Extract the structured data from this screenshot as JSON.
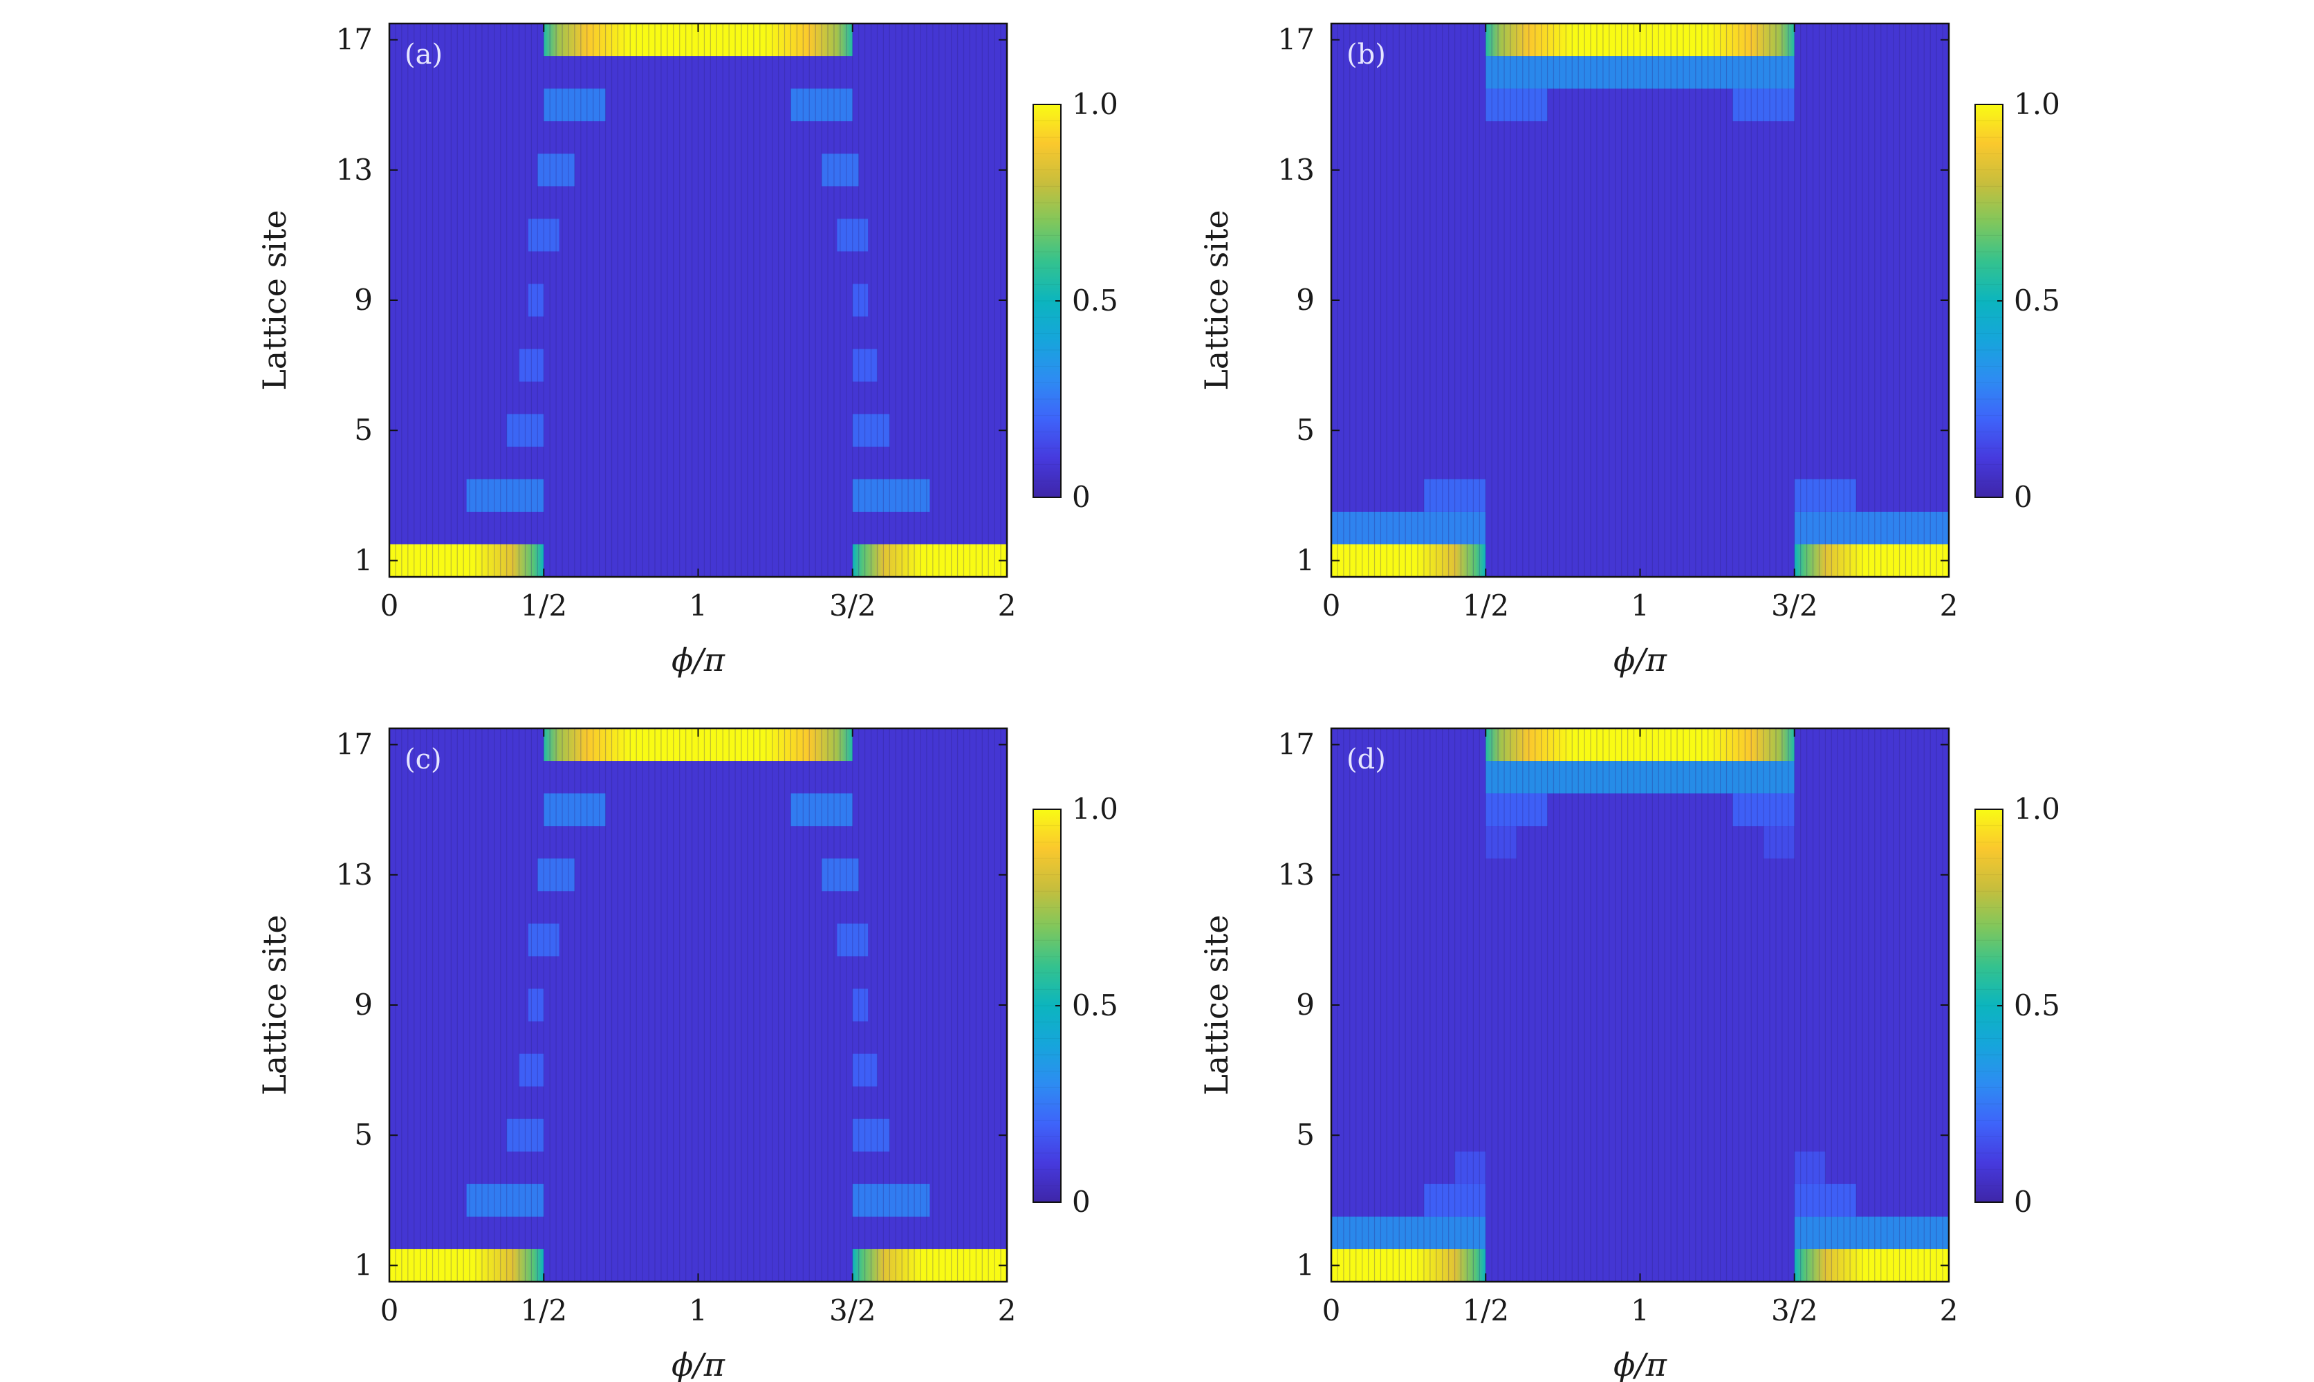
{
  "chart_data": [
    {
      "type": "heatmap",
      "panel_label": "(a)",
      "xlabel": "ϕ/π",
      "ylabel": "Lattice site",
      "xlim": [
        0,
        2
      ],
      "ylim": [
        0.5,
        17.5
      ],
      "x_ticks": [
        "0",
        "1/2",
        "1",
        "3/2",
        "2"
      ],
      "x_tick_values": [
        0,
        0.5,
        1,
        1.5,
        2
      ],
      "y_ticks": [
        "1",
        "5",
        "9",
        "13",
        "17"
      ],
      "y_tick_values": [
        1,
        5,
        9,
        13,
        17
      ],
      "colorbar": {
        "ticks": [
          "0",
          "0.5",
          "1.0"
        ],
        "tick_values": [
          0,
          0.5,
          1.0
        ],
        "range": [
          0,
          1.0
        ]
      },
      "colormap": "parula",
      "edge_states": [
        {
          "site": 1,
          "x_start": 0,
          "x_end": 0.5,
          "value": 1.0,
          "fade": "right"
        },
        {
          "site": 1,
          "x_start": 1.5,
          "x_end": 2,
          "value": 1.0,
          "fade": "left"
        },
        {
          "site": 17,
          "x_start": 0.5,
          "x_end": 1.5,
          "value": 1.0,
          "fade": "both"
        }
      ],
      "bulk_spots": [
        {
          "x_start": 0.25,
          "x_end": 0.5,
          "site": 3,
          "value": 0.28
        },
        {
          "x_start": 0.38,
          "x_end": 0.5,
          "site": 5,
          "value": 0.22
        },
        {
          "x_start": 0.42,
          "x_end": 0.5,
          "site": 7,
          "value": 0.2
        },
        {
          "x_start": 0.45,
          "x_end": 0.5,
          "site": 9,
          "value": 0.2
        },
        {
          "x_start": 0.45,
          "x_end": 0.55,
          "site": 11,
          "value": 0.22
        },
        {
          "x_start": 0.48,
          "x_end": 0.6,
          "site": 13,
          "value": 0.25
        },
        {
          "x_start": 0.5,
          "x_end": 0.7,
          "site": 15,
          "value": 0.28
        },
        {
          "x_start": 1.5,
          "x_end": 1.75,
          "site": 3,
          "value": 0.28
        },
        {
          "x_start": 1.5,
          "x_end": 1.62,
          "site": 5,
          "value": 0.22
        },
        {
          "x_start": 1.5,
          "x_end": 1.58,
          "site": 7,
          "value": 0.2
        },
        {
          "x_start": 1.5,
          "x_end": 1.55,
          "site": 9,
          "value": 0.2
        },
        {
          "x_start": 1.45,
          "x_end": 1.55,
          "site": 11,
          "value": 0.22
        },
        {
          "x_start": 1.4,
          "x_end": 1.52,
          "site": 13,
          "value": 0.25
        },
        {
          "x_start": 1.3,
          "x_end": 1.5,
          "site": 15,
          "value": 0.28
        }
      ],
      "background_value": 0.08
    },
    {
      "type": "heatmap",
      "panel_label": "(b)",
      "xlabel": "ϕ/π",
      "ylabel": "Lattice site",
      "xlim": [
        0,
        2
      ],
      "ylim": [
        0.5,
        17.5
      ],
      "x_ticks": [
        "0",
        "1/2",
        "1",
        "3/2",
        "2"
      ],
      "x_tick_values": [
        0,
        0.5,
        1,
        1.5,
        2
      ],
      "y_ticks": [
        "1",
        "5",
        "9",
        "13",
        "17"
      ],
      "y_tick_values": [
        1,
        5,
        9,
        13,
        17
      ],
      "colorbar": {
        "ticks": [
          "0",
          "0.5",
          "1.0"
        ],
        "tick_values": [
          0,
          0.5,
          1.0
        ],
        "range": [
          0,
          1.0
        ]
      },
      "colormap": "parula",
      "edge_states": [
        {
          "site": 1,
          "x_start": 0,
          "x_end": 0.5,
          "value": 1.0,
          "fade": "right"
        },
        {
          "site": 1,
          "x_start": 1.5,
          "x_end": 2,
          "value": 1.0,
          "fade": "left"
        },
        {
          "site": 17,
          "x_start": 0.5,
          "x_end": 1.5,
          "value": 1.0,
          "fade": "both"
        }
      ],
      "bulk_spots": [
        {
          "x_start": 0,
          "x_end": 0.5,
          "site": 2,
          "value": 0.3
        },
        {
          "x_start": 0.3,
          "x_end": 0.5,
          "site": 3,
          "value": 0.22
        },
        {
          "x_start": 1.5,
          "x_end": 2,
          "site": 2,
          "value": 0.3
        },
        {
          "x_start": 1.5,
          "x_end": 1.7,
          "site": 3,
          "value": 0.22
        },
        {
          "x_start": 0.5,
          "x_end": 1.5,
          "site": 16,
          "value": 0.32
        },
        {
          "x_start": 0.5,
          "x_end": 0.7,
          "site": 15,
          "value": 0.22
        },
        {
          "x_start": 1.3,
          "x_end": 1.5,
          "site": 15,
          "value": 0.22
        }
      ],
      "background_value": 0.08
    },
    {
      "type": "heatmap",
      "panel_label": "(c)",
      "xlabel": "ϕ/π",
      "ylabel": "Lattice site",
      "xlim": [
        0,
        2
      ],
      "ylim": [
        0.5,
        17.5
      ],
      "x_ticks": [
        "0",
        "1/2",
        "1",
        "3/2",
        "2"
      ],
      "x_tick_values": [
        0,
        0.5,
        1,
        1.5,
        2
      ],
      "y_ticks": [
        "1",
        "5",
        "9",
        "13",
        "17"
      ],
      "y_tick_values": [
        1,
        5,
        9,
        13,
        17
      ],
      "colorbar": {
        "ticks": [
          "0",
          "0.5",
          "1.0"
        ],
        "tick_values": [
          0,
          0.5,
          1.0
        ],
        "range": [
          0,
          1.0
        ]
      },
      "colormap": "parula",
      "edge_states": [
        {
          "site": 1,
          "x_start": 0,
          "x_end": 0.5,
          "value": 1.0,
          "fade": "right"
        },
        {
          "site": 1,
          "x_start": 1.5,
          "x_end": 2,
          "value": 1.0,
          "fade": "left"
        },
        {
          "site": 17,
          "x_start": 0.5,
          "x_end": 1.5,
          "value": 1.0,
          "fade": "both"
        }
      ],
      "bulk_spots": [
        {
          "x_start": 0.25,
          "x_end": 0.5,
          "site": 3,
          "value": 0.28
        },
        {
          "x_start": 0.38,
          "x_end": 0.5,
          "site": 5,
          "value": 0.22
        },
        {
          "x_start": 0.42,
          "x_end": 0.5,
          "site": 7,
          "value": 0.2
        },
        {
          "x_start": 0.45,
          "x_end": 0.5,
          "site": 9,
          "value": 0.2
        },
        {
          "x_start": 0.45,
          "x_end": 0.55,
          "site": 11,
          "value": 0.22
        },
        {
          "x_start": 0.48,
          "x_end": 0.6,
          "site": 13,
          "value": 0.25
        },
        {
          "x_start": 0.5,
          "x_end": 0.7,
          "site": 15,
          "value": 0.28
        },
        {
          "x_start": 1.5,
          "x_end": 1.75,
          "site": 3,
          "value": 0.28
        },
        {
          "x_start": 1.5,
          "x_end": 1.62,
          "site": 5,
          "value": 0.22
        },
        {
          "x_start": 1.5,
          "x_end": 1.58,
          "site": 7,
          "value": 0.2
        },
        {
          "x_start": 1.5,
          "x_end": 1.55,
          "site": 9,
          "value": 0.2
        },
        {
          "x_start": 1.45,
          "x_end": 1.55,
          "site": 11,
          "value": 0.22
        },
        {
          "x_start": 1.4,
          "x_end": 1.52,
          "site": 13,
          "value": 0.25
        },
        {
          "x_start": 1.3,
          "x_end": 1.5,
          "site": 15,
          "value": 0.28
        }
      ],
      "background_value": 0.08
    },
    {
      "type": "heatmap",
      "panel_label": "(d)",
      "xlabel": "ϕ/π",
      "ylabel": "Lattice site",
      "xlim": [
        0,
        2
      ],
      "ylim": [
        0.5,
        17.5
      ],
      "x_ticks": [
        "0",
        "1/2",
        "1",
        "3/2",
        "2"
      ],
      "x_tick_values": [
        0,
        0.5,
        1,
        1.5,
        2
      ],
      "y_ticks": [
        "1",
        "5",
        "9",
        "13",
        "17"
      ],
      "y_tick_values": [
        1,
        5,
        9,
        13,
        17
      ],
      "colorbar": {
        "ticks": [
          "0",
          "0.5",
          "1.0"
        ],
        "tick_values": [
          0,
          0.5,
          1.0
        ],
        "range": [
          0,
          1.0
        ]
      },
      "colormap": "parula",
      "edge_states": [
        {
          "site": 1,
          "x_start": 0,
          "x_end": 0.5,
          "value": 1.0,
          "fade": "right"
        },
        {
          "site": 1,
          "x_start": 1.5,
          "x_end": 2,
          "value": 1.0,
          "fade": "left"
        },
        {
          "site": 17,
          "x_start": 0.5,
          "x_end": 1.5,
          "value": 1.0,
          "fade": "both"
        }
      ],
      "bulk_spots": [
        {
          "x_start": 0,
          "x_end": 0.5,
          "site": 2,
          "value": 0.32
        },
        {
          "x_start": 0.3,
          "x_end": 0.5,
          "site": 3,
          "value": 0.2
        },
        {
          "x_start": 0.4,
          "x_end": 0.5,
          "site": 4,
          "value": 0.16
        },
        {
          "x_start": 1.5,
          "x_end": 2,
          "site": 2,
          "value": 0.32
        },
        {
          "x_start": 1.5,
          "x_end": 1.7,
          "site": 3,
          "value": 0.2
        },
        {
          "x_start": 1.5,
          "x_end": 1.6,
          "site": 4,
          "value": 0.16
        },
        {
          "x_start": 0.5,
          "x_end": 1.5,
          "site": 16,
          "value": 0.34
        },
        {
          "x_start": 0.5,
          "x_end": 0.7,
          "site": 15,
          "value": 0.2
        },
        {
          "x_start": 1.3,
          "x_end": 1.5,
          "site": 15,
          "value": 0.2
        },
        {
          "x_start": 0.5,
          "x_end": 0.6,
          "site": 14,
          "value": 0.15
        },
        {
          "x_start": 1.4,
          "x_end": 1.5,
          "site": 14,
          "value": 0.15
        }
      ],
      "background_value": 0.08
    }
  ]
}
